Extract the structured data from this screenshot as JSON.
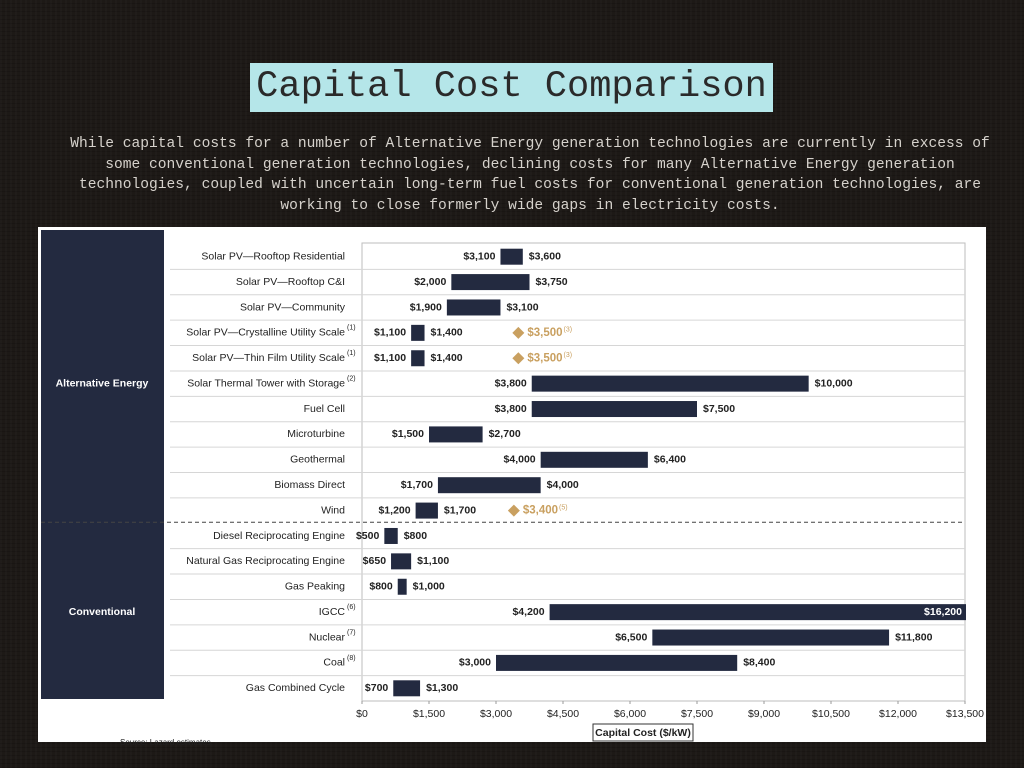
{
  "title": "Capital Cost Comparison",
  "description": "While capital costs for a number of Alternative Energy generation technologies are currently in excess of some conventional generation technologies, declining costs for many Alternative Energy generation technologies, coupled with uncertain long-term fuel costs for conventional generation technologies, are working to close formerly wide gaps in electricity costs.",
  "chart_data": {
    "type": "floating-bar",
    "x_label": "Capital Cost ($/kW)",
    "xlim": [
      0,
      13500
    ],
    "xticks": [
      {
        "value": 0,
        "label": "$0"
      },
      {
        "value": 1500,
        "label": "$1,500"
      },
      {
        "value": 3000,
        "label": "$3,000"
      },
      {
        "value": 4500,
        "label": "$4,500"
      },
      {
        "value": 6000,
        "label": "$6,000"
      },
      {
        "value": 7500,
        "label": "$7,500"
      },
      {
        "value": 9000,
        "label": "$9,000"
      },
      {
        "value": 10500,
        "label": "$10,500"
      },
      {
        "value": 12000,
        "label": "$12,000"
      },
      {
        "value": 13500,
        "label": "$13,500"
      }
    ],
    "bar_color": "#232a40",
    "marker_color": "#c9a060",
    "source": "Source:     Lazard estimates.",
    "groups": [
      {
        "name": "Alternative Energy",
        "categories": [
          "Solar PV—Rooftop Residential",
          "Solar PV—Rooftop C&I",
          "Solar PV—Community",
          "Solar PV—Crystalline Utility Scale",
          "Solar PV—Thin Film Utility Scale",
          "Solar Thermal Tower with Storage",
          "Fuel Cell",
          "Microturbine",
          "Geothermal",
          "Biomass Direct",
          "Wind"
        ],
        "notes": [
          null,
          null,
          null,
          "(1)",
          "(1)",
          "(2)",
          null,
          null,
          null,
          null,
          null
        ],
        "low": [
          3100,
          2000,
          1900,
          1100,
          1100,
          3800,
          3800,
          1500,
          4000,
          1700,
          1200
        ],
        "low_labels": [
          "$3,100",
          "$2,000",
          "$1,900",
          "$1,100",
          "$1,100",
          "$3,800",
          "$3,800",
          "$1,500",
          "$4,000",
          "$1,700",
          "$1,200"
        ],
        "high": [
          3600,
          3750,
          3100,
          1400,
          1400,
          10000,
          7500,
          2700,
          6400,
          4000,
          1700
        ],
        "high_labels": [
          "$3,600",
          "$3,750",
          "$3,100",
          "$1,400",
          "$1,400",
          "$10,000",
          "$7,500",
          "$2,700",
          "$6,400",
          "$4,000",
          "$1,700"
        ],
        "markers": [
          null,
          null,
          null,
          3500,
          3500,
          null,
          null,
          null,
          null,
          null,
          3400
        ],
        "marker_labels": [
          null,
          null,
          null,
          "$3,500",
          "$3,500",
          null,
          null,
          null,
          null,
          null,
          "$3,400"
        ],
        "marker_notes": [
          null,
          null,
          null,
          "(3)",
          "(3)",
          null,
          null,
          null,
          null,
          null,
          "(5)"
        ]
      },
      {
        "name": "Conventional",
        "categories": [
          "Diesel Reciprocating Engine",
          "Natural Gas Reciprocating Engine",
          "Gas Peaking",
          "IGCC",
          "Nuclear",
          "Coal",
          "Gas Combined Cycle"
        ],
        "notes": [
          null,
          null,
          null,
          "(6)",
          "(7)",
          "(8)",
          null
        ],
        "low": [
          500,
          650,
          800,
          4200,
          6500,
          3000,
          700
        ],
        "low_labels": [
          "$500",
          "$650",
          "$800",
          "$4,200",
          "$6,500",
          "$3,000",
          "$700"
        ],
        "high": [
          800,
          1100,
          1000,
          16200,
          11800,
          8400,
          1300
        ],
        "high_labels": [
          "$800",
          "$1,100",
          "$1,000",
          "$16,200",
          "$11,800",
          "$8,400",
          "$1,300"
        ],
        "markers": [
          null,
          null,
          null,
          null,
          null,
          null,
          null
        ],
        "marker_labels": [
          null,
          null,
          null,
          null,
          null,
          null,
          null
        ],
        "marker_notes": [
          null,
          null,
          null,
          null,
          null,
          null,
          null
        ]
      }
    ]
  }
}
